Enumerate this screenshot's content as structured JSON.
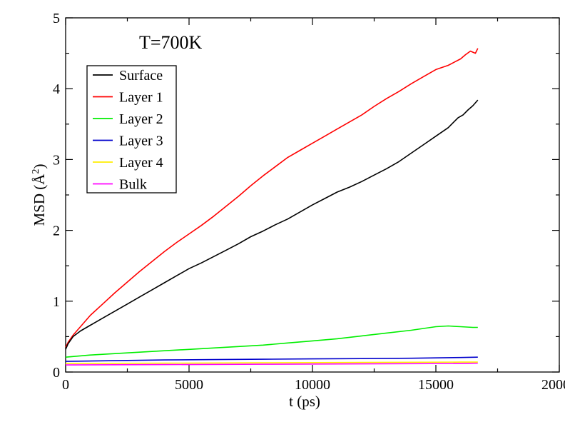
{
  "chart_data": {
    "type": "line",
    "annotation": "T=700K",
    "xlabel": "t (ps)",
    "ylabel_main": "MSD (",
    "ylabel_unit": "Å",
    "ylabel_sup": "2",
    "ylabel_close": ")",
    "xlim": [
      0,
      20000
    ],
    "ylim": [
      0,
      5
    ],
    "xticks": [
      0,
      5000,
      10000,
      15000,
      20000
    ],
    "xtick_labels": [
      "0",
      "5000",
      "10000",
      "15000",
      "20000"
    ],
    "yticks": [
      0,
      1,
      2,
      3,
      4,
      5
    ],
    "ytick_labels": [
      "0",
      "1",
      "2",
      "3",
      "4",
      "5"
    ],
    "grid": false,
    "legend_position": "top-left",
    "series": [
      {
        "name": "Surface",
        "color": "#000000",
        "x": [
          0,
          100,
          300,
          600,
          1000,
          1500,
          2000,
          2500,
          3000,
          3500,
          4000,
          4500,
          5000,
          5500,
          6000,
          6500,
          7000,
          7500,
          8000,
          8500,
          9000,
          9500,
          10000,
          10500,
          11000,
          11500,
          12000,
          12500,
          13000,
          13500,
          14000,
          14500,
          15000,
          15500,
          15700,
          15900,
          16100,
          16300,
          16500,
          16700
        ],
        "y": [
          0.32,
          0.4,
          0.5,
          0.58,
          0.66,
          0.76,
          0.86,
          0.96,
          1.06,
          1.16,
          1.26,
          1.36,
          1.46,
          1.54,
          1.63,
          1.72,
          1.81,
          1.91,
          1.99,
          2.08,
          2.16,
          2.26,
          2.36,
          2.45,
          2.54,
          2.61,
          2.69,
          2.78,
          2.87,
          2.97,
          3.09,
          3.21,
          3.33,
          3.45,
          3.52,
          3.59,
          3.63,
          3.7,
          3.76,
          3.84
        ]
      },
      {
        "name": "Layer 1",
        "color": "#ff0000",
        "x": [
          0,
          100,
          300,
          600,
          1000,
          1500,
          2000,
          2500,
          3000,
          3500,
          4000,
          4500,
          5000,
          5500,
          6000,
          6500,
          7000,
          7500,
          8000,
          8500,
          9000,
          9500,
          10000,
          10500,
          11000,
          11500,
          12000,
          12500,
          13000,
          13500,
          14000,
          14500,
          15000,
          15500,
          16000,
          16200,
          16400,
          16600,
          16700
        ],
        "y": [
          0.35,
          0.42,
          0.52,
          0.64,
          0.8,
          0.96,
          1.12,
          1.27,
          1.42,
          1.56,
          1.7,
          1.83,
          1.95,
          2.07,
          2.2,
          2.34,
          2.48,
          2.63,
          2.77,
          2.9,
          3.03,
          3.13,
          3.23,
          3.33,
          3.43,
          3.53,
          3.63,
          3.75,
          3.86,
          3.96,
          4.07,
          4.17,
          4.27,
          4.33,
          4.42,
          4.48,
          4.53,
          4.5,
          4.57
        ]
      },
      {
        "name": "Layer 2",
        "color": "#00ee00",
        "x": [
          0,
          1000,
          2000,
          3000,
          4000,
          5000,
          6000,
          7000,
          8000,
          9000,
          10000,
          11000,
          12000,
          13000,
          14000,
          15000,
          15500,
          16000,
          16500,
          16700
        ],
        "y": [
          0.21,
          0.24,
          0.26,
          0.28,
          0.3,
          0.32,
          0.34,
          0.36,
          0.38,
          0.41,
          0.44,
          0.47,
          0.51,
          0.55,
          0.59,
          0.64,
          0.65,
          0.64,
          0.63,
          0.63
        ]
      },
      {
        "name": "Layer 3",
        "color": "#0000cc",
        "x": [
          0,
          2000,
          4000,
          6000,
          8000,
          10000,
          12000,
          14000,
          15000,
          16000,
          16700
        ],
        "y": [
          0.15,
          0.16,
          0.17,
          0.175,
          0.18,
          0.185,
          0.19,
          0.195,
          0.2,
          0.205,
          0.21
        ]
      },
      {
        "name": "Layer 4",
        "color": "#ffee00",
        "x": [
          0,
          4000,
          8000,
          12000,
          16000,
          16700
        ],
        "y": [
          0.12,
          0.125,
          0.13,
          0.135,
          0.14,
          0.14
        ]
      },
      {
        "name": "Bulk",
        "color": "#ff00ff",
        "x": [
          0,
          4000,
          8000,
          12000,
          16000,
          16700
        ],
        "y": [
          0.1,
          0.105,
          0.11,
          0.115,
          0.12,
          0.125
        ]
      }
    ]
  }
}
